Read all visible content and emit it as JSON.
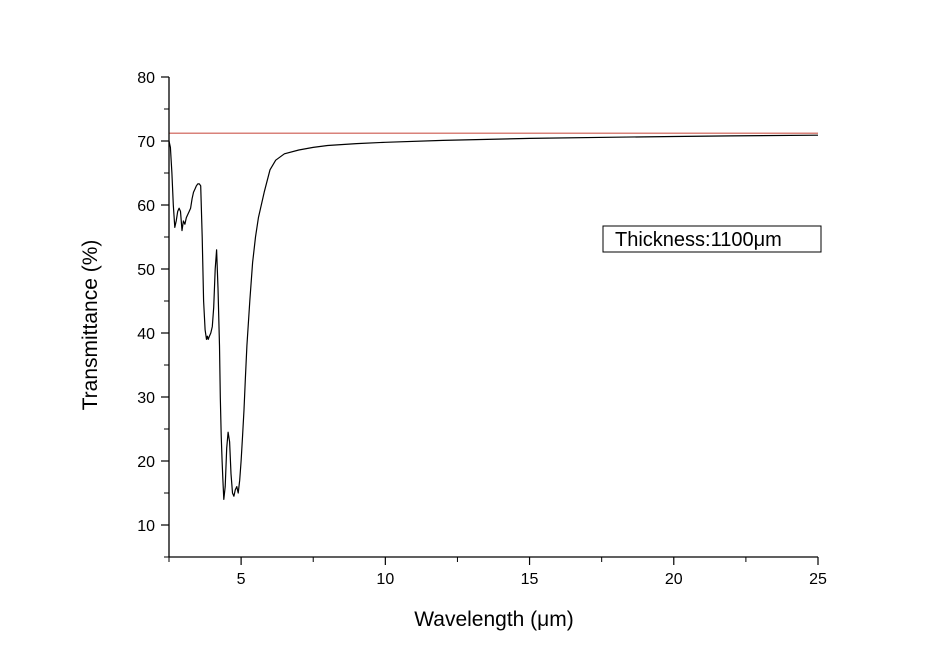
{
  "chart_data": {
    "type": "line",
    "title": "",
    "xlabel": "Wavelength (μm)",
    "ylabel": "Transmittance (%)",
    "xlim": [
      2.5,
      25
    ],
    "ylim": [
      5,
      80
    ],
    "x_ticks": [
      5,
      10,
      15,
      20,
      25
    ],
    "y_ticks": [
      10,
      20,
      30,
      40,
      50,
      60,
      70,
      80
    ],
    "grid": false,
    "legend": "none",
    "annotation": "Thickness:1100μm",
    "series": [
      {
        "color": "#000000",
        "x": [
          2.5,
          2.55,
          2.6,
          2.65,
          2.7,
          2.75,
          2.8,
          2.85,
          2.9,
          2.95,
          3.0,
          3.05,
          3.1,
          3.15,
          3.2,
          3.25,
          3.3,
          3.35,
          3.4,
          3.45,
          3.5,
          3.55,
          3.6,
          3.65,
          3.7,
          3.75,
          3.8,
          3.83,
          3.86,
          3.9,
          3.95,
          4.0,
          4.05,
          4.1,
          4.15,
          4.2,
          4.25,
          4.28,
          4.31,
          4.34,
          4.37,
          4.4,
          4.45,
          4.5,
          4.55,
          4.6,
          4.65,
          4.7,
          4.75,
          4.8,
          4.85,
          4.9,
          4.95,
          5.0,
          5.05,
          5.1,
          5.15,
          5.2,
          5.3,
          5.4,
          5.5,
          5.6,
          5.8,
          6.0,
          6.2,
          6.5,
          7.0,
          7.5,
          8.0,
          9.0,
          10.0,
          12.0,
          15.0,
          18.0,
          20.0,
          22.0,
          25.0
        ],
        "y": [
          70.0,
          69.0,
          65.0,
          60.0,
          56.5,
          57.5,
          59.0,
          59.5,
          59.0,
          56.0,
          57.5,
          57.0,
          58.0,
          58.5,
          59.0,
          59.5,
          61.0,
          62.0,
          62.5,
          63.0,
          63.3,
          63.3,
          63.0,
          55.0,
          45.0,
          40.5,
          39.0,
          39.5,
          39.0,
          39.5,
          40.0,
          41.0,
          44.0,
          50.0,
          53.0,
          47.0,
          38.0,
          30.0,
          24.0,
          20.0,
          17.0,
          14.0,
          16.0,
          22.0,
          24.5,
          23.0,
          18.0,
          15.0,
          14.5,
          15.5,
          16.0,
          15.0,
          17.0,
          20.0,
          24.0,
          28.0,
          33.0,
          38.0,
          45.0,
          51.0,
          55.0,
          58.0,
          62.0,
          65.5,
          67.0,
          68.0,
          68.6,
          69.0,
          69.3,
          69.6,
          69.8,
          70.1,
          70.4,
          70.6,
          70.7,
          70.8,
          70.9
        ]
      },
      {
        "color": "#d9827a",
        "x": [
          2.5,
          25.0
        ],
        "y": [
          71.2,
          71.2
        ]
      }
    ]
  }
}
